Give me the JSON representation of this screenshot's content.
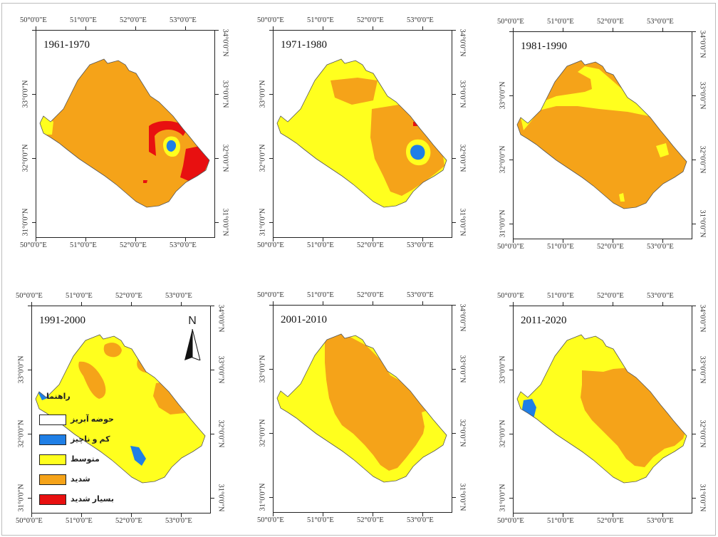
{
  "colors": {
    "boundary": "#ffffff",
    "negligible": "#1f7fe6",
    "moderate": "#ffff1e",
    "severe": "#f5a319",
    "very_severe": "#e81010"
  },
  "lon_labels": [
    "50°0'0\"E",
    "51°0'0\"E",
    "52°0'0\"E",
    "53°0'0\"E"
  ],
  "lat_labels": [
    "31°0'0\"N",
    "32°0'0\"N",
    "33°0'0\"N",
    "34°0'0\"N"
  ],
  "panels": [
    {
      "period": "1961-1970"
    },
    {
      "period": "1971-1980"
    },
    {
      "period": "1981-1990"
    },
    {
      "period": "1991-2000"
    },
    {
      "period": "2001-2010"
    },
    {
      "period": "2011-2020"
    }
  ],
  "north_arrow": {
    "letter": "N"
  },
  "legend": {
    "title": "راهنما",
    "items": [
      {
        "key": "boundary",
        "label": "حوضه آبریز"
      },
      {
        "key": "negligible",
        "label": "کم و ناچیز"
      },
      {
        "key": "moderate",
        "label": "متوسط"
      },
      {
        "key": "severe",
        "label": "شدید"
      },
      {
        "key": "very_severe",
        "label": "بسیار شدید"
      }
    ]
  }
}
